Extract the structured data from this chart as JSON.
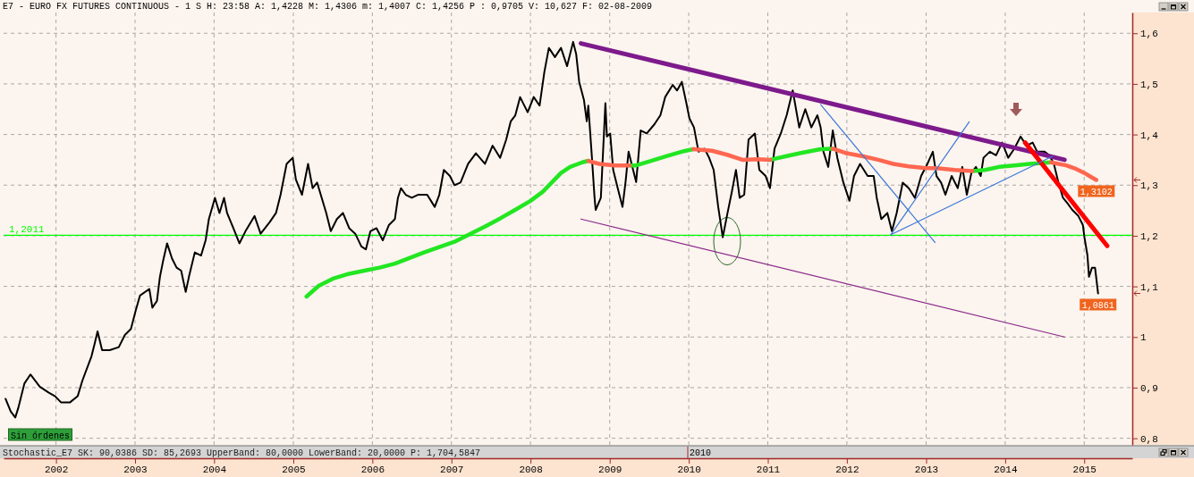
{
  "chart_data": {
    "type": "line",
    "title": "E7 - EURO FX FUTURES CONTINUOUS - 1 S H: 23:58 A: 1,4228 M: 1,4306 m: 1,4007 C: 1,4256 P : 0,9705 V: 10,627 F: 02-08-2009",
    "xlim": [
      "2001-05-04",
      "2015-08-11"
    ],
    "xticks": [
      "2002",
      "2003",
      "2004",
      "2005",
      "2006",
      "2007",
      "2008",
      "2009",
      "2010",
      "2011",
      "2012",
      "2013",
      "2014",
      "2015"
    ],
    "ylim": [
      0.787,
      1.641
    ],
    "yticks": [
      {
        "value": 0.8,
        "label": "0,8"
      },
      {
        "value": 0.9,
        "label": "0,9"
      },
      1,
      {
        "value": 1.1,
        "label": "1,1"
      },
      {
        "value": 1.2,
        "label": "1,2"
      },
      {
        "value": 1.3,
        "label": "1,3"
      },
      {
        "value": 1.4,
        "label": "1,4"
      },
      {
        "value": 1.5,
        "label": "1,5"
      },
      {
        "value": 1.6,
        "label": "1,6"
      }
    ],
    "grid": true,
    "series": [
      {
        "color": "#000000",
        "x": [
          "2001-05-13",
          "2001-06-06",
          "2001-06-27",
          "2001-07-11",
          "2001-08-08",
          "2001-09-05",
          "2001-10-18",
          "2001-11-29",
          "2001-12-28",
          "2002-01-24",
          "2002-03-07",
          "2002-04-11",
          "2002-05-03",
          "2002-06-14",
          "2002-06-28",
          "2002-07-12",
          "2002-08-02",
          "2002-09-06",
          "2002-10-18",
          "2002-11-15",
          "2002-12-13",
          "2003-01-04",
          "2003-01-24",
          "2003-03-08",
          "2003-03-22",
          "2003-04-12",
          "2003-04-26",
          "2003-05-10",
          "2003-05-29",
          "2003-06-21",
          "2003-07-12",
          "2003-08-02",
          "2003-08-23",
          "2003-09-07",
          "2003-10-04",
          "2003-11-02",
          "2003-11-23",
          "2003-12-08",
          "2004-01-05",
          "2004-01-26",
          "2004-02-16",
          "2004-03-01",
          "2004-03-30",
          "2004-04-27",
          "2004-05-25",
          "2004-07-06",
          "2004-08-03",
          "2004-09-14",
          "2004-10-13",
          "2004-11-03",
          "2004-12-01",
          "2004-12-29",
          "2005-01-13",
          "2005-02-10",
          "2005-03-10",
          "2005-03-31",
          "2005-04-21",
          "2005-05-12",
          "2005-06-02",
          "2005-06-23",
          "2005-07-21",
          "2005-08-18",
          "2005-09-16",
          "2005-10-14",
          "2005-11-11",
          "2005-12-02",
          "2005-12-23",
          "2006-01-20",
          "2006-02-18",
          "2006-03-18",
          "2006-04-15",
          "2006-04-29",
          "2006-05-13",
          "2006-06-04",
          "2006-07-02",
          "2006-07-30",
          "2006-09-11",
          "2006-10-16",
          "2006-11-06",
          "2006-11-27",
          "2006-12-25",
          "2007-01-15",
          "2007-02-12",
          "2007-03-19",
          "2007-04-24",
          "2007-06-05",
          "2007-07-10",
          "2007-08-14",
          "2007-09-11",
          "2007-10-02",
          "2007-10-23",
          "2007-11-14",
          "2007-12-19",
          "2008-01-16",
          "2008-02-12",
          "2008-03-05",
          "2008-03-26",
          "2008-04-23",
          "2008-05-21",
          "2008-06-18",
          "2008-07-16",
          "2008-07-30",
          "2008-08-13",
          "2008-09-04",
          "2008-09-17",
          "2008-09-24",
          "2008-10-09",
          "2008-10-23",
          "2008-10-28",
          "2008-11-21",
          "2008-12-12",
          "2008-12-19",
          "2009-01-03",
          "2009-01-17",
          "2009-02-07",
          "2009-03-01",
          "2009-03-15",
          "2009-03-29",
          "2009-04-19",
          "2009-05-03",
          "2009-05-24",
          "2009-06-21",
          "2009-07-26",
          "2009-08-23",
          "2009-09-14",
          "2009-10-19",
          "2009-11-08",
          "2009-11-30",
          "2009-12-21",
          "2010-01-04",
          "2010-01-25",
          "2010-02-15",
          "2010-03-15",
          "2010-04-05",
          "2010-04-26",
          "2010-05-17",
          "2010-06-07",
          "2010-06-29",
          "2010-07-19",
          "2010-08-07",
          "2010-08-24",
          "2010-09-14",
          "2010-10-04",
          "2010-11-02",
          "2010-11-23",
          "2010-12-22",
          "2011-01-11",
          "2011-02-01",
          "2011-03-02",
          "2011-03-29",
          "2011-04-26",
          "2011-05-26",
          "2011-06-23",
          "2011-07-21",
          "2011-08-18",
          "2011-09-02",
          "2011-09-15",
          "2011-10-07",
          "2011-10-28",
          "2011-11-18",
          "2011-12-16",
          "2012-01-13",
          "2012-02-03",
          "2012-03-02",
          "2012-04-06",
          "2012-05-04",
          "2012-05-18",
          "2012-06-08",
          "2012-07-06",
          "2012-07-27",
          "2012-08-18",
          "2012-09-15",
          "2012-10-13",
          "2012-11-10",
          "2012-12-09",
          "2013-01-07",
          "2013-02-01",
          "2013-02-18",
          "2013-03-11",
          "2013-03-31",
          "2013-04-29",
          "2013-05-27",
          "2013-06-17",
          "2013-07-08",
          "2013-07-29",
          "2013-08-19",
          "2013-09-10",
          "2013-09-23",
          "2013-10-22",
          "2013-11-20",
          "2013-12-18",
          "2014-01-15",
          "2014-02-12",
          "2014-03-13",
          "2014-04-10",
          "2014-05-08",
          "2014-05-29",
          "2014-07-02",
          "2014-07-24",
          "2014-08-14",
          "2014-09-04",
          "2014-09-25",
          "2014-10-16",
          "2014-11-07",
          "2014-12-05",
          "2014-12-26",
          "2015-01-02",
          "2015-01-16",
          "2015-01-23",
          "2015-02-06",
          "2015-02-20",
          "2015-03-06"
        ],
        "values": [
          0.878,
          0.853,
          0.841,
          0.86,
          0.908,
          0.926,
          0.902,
          0.89,
          0.883,
          0.871,
          0.871,
          0.883,
          0.914,
          0.962,
          0.986,
          1.011,
          0.974,
          0.974,
          0.98,
          1.004,
          1.016,
          1.052,
          1.082,
          1.095,
          1.058,
          1.071,
          1.119,
          1.149,
          1.185,
          1.155,
          1.137,
          1.131,
          1.089,
          1.119,
          1.167,
          1.161,
          1.191,
          1.233,
          1.275,
          1.245,
          1.275,
          1.245,
          1.215,
          1.185,
          1.209,
          1.239,
          1.204,
          1.227,
          1.245,
          1.281,
          1.342,
          1.354,
          1.311,
          1.281,
          1.342,
          1.294,
          1.305,
          1.275,
          1.245,
          1.209,
          1.233,
          1.245,
          1.215,
          1.204,
          1.179,
          1.173,
          1.209,
          1.215,
          1.191,
          1.221,
          1.233,
          1.275,
          1.294,
          1.281,
          1.275,
          1.281,
          1.281,
          1.257,
          1.281,
          1.33,
          1.318,
          1.3,
          1.305,
          1.342,
          1.363,
          1.342,
          1.378,
          1.354,
          1.39,
          1.426,
          1.438,
          1.474,
          1.444,
          1.474,
          1.457,
          1.523,
          1.571,
          1.553,
          1.571,
          1.535,
          1.583,
          1.559,
          1.504,
          1.468,
          1.426,
          1.457,
          1.366,
          1.275,
          1.251,
          1.275,
          1.462,
          1.396,
          1.402,
          1.33,
          1.294,
          1.257,
          1.306,
          1.366,
          1.33,
          1.306,
          1.408,
          1.402,
          1.42,
          1.438,
          1.474,
          1.498,
          1.487,
          1.504,
          1.462,
          1.432,
          1.414,
          1.366,
          1.372,
          1.354,
          1.33,
          1.257,
          1.197,
          1.245,
          1.287,
          1.33,
          1.275,
          1.281,
          1.39,
          1.402,
          1.33,
          1.318,
          1.294,
          1.372,
          1.402,
          1.438,
          1.487,
          1.414,
          1.45,
          1.414,
          1.438,
          1.414,
          1.366,
          1.336,
          1.408,
          1.354,
          1.305,
          1.269,
          1.318,
          1.342,
          1.318,
          1.318,
          1.275,
          1.233,
          1.245,
          1.209,
          1.245,
          1.305,
          1.294,
          1.275,
          1.318,
          1.342,
          1.366,
          1.318,
          1.305,
          1.281,
          1.318,
          1.294,
          1.336,
          1.281,
          1.324,
          1.336,
          1.318,
          1.354,
          1.366,
          1.359,
          1.384,
          1.354,
          1.372,
          1.396,
          1.378,
          1.384,
          1.366,
          1.366,
          1.359,
          1.342,
          1.305,
          1.275,
          1.264,
          1.251,
          1.239,
          1.221,
          1.197,
          1.161,
          1.119,
          1.137,
          1.137,
          1.0861
        ],
        "value_labels": [
          null,
          null,
          null,
          null,
          null,
          null,
          null,
          null,
          null,
          null,
          null,
          null,
          null,
          null,
          null,
          null,
          null,
          null,
          null,
          null,
          null,
          null,
          null,
          null,
          null,
          null,
          null,
          null,
          null,
          null,
          null,
          null,
          null,
          null,
          null,
          null,
          null,
          null,
          null,
          null,
          null,
          null,
          null,
          null,
          null,
          null,
          null,
          null,
          null,
          null,
          null,
          null,
          null,
          null,
          null,
          null,
          null,
          null,
          null,
          null,
          null,
          null,
          null,
          null,
          null,
          null,
          null,
          null,
          null,
          null,
          null,
          null,
          null,
          null,
          null,
          null,
          null,
          null,
          null,
          null,
          null,
          null,
          null,
          null,
          null,
          null,
          null,
          null,
          null,
          null,
          null,
          null,
          null,
          null,
          null,
          null,
          null,
          null,
          null,
          null,
          null,
          null,
          null,
          null,
          null,
          null,
          null,
          null,
          null,
          null,
          null,
          null,
          null,
          null,
          null,
          null,
          null,
          null,
          null,
          null,
          null,
          null,
          null,
          null,
          null,
          null,
          null,
          null,
          null,
          null,
          null,
          null,
          null,
          null,
          null,
          null,
          null,
          null,
          null,
          null,
          null,
          null,
          null,
          null,
          null,
          null,
          null,
          null,
          null,
          null,
          null,
          null,
          null,
          null,
          null,
          null,
          null,
          null,
          null,
          null,
          null,
          null,
          null,
          null,
          null,
          null,
          null,
          null,
          null,
          null,
          null,
          null,
          null,
          null,
          null,
          null,
          null,
          null,
          null,
          null,
          null,
          null,
          null,
          null,
          null,
          null,
          null,
          null,
          null,
          null,
          null,
          null,
          null,
          null,
          null,
          null,
          null,
          null,
          null,
          null,
          null,
          null,
          null,
          null,
          null,
          null,
          null,
          null,
          null,
          null,
          null,
          "1,0861"
        ]
      },
      {
        "color": "#22e622",
        "x": [
          "2005-03-03",
          "2005-04-28",
          "2005-07-07",
          "2005-09-16",
          "2005-11-25",
          "2006-02-03",
          "2006-04-15",
          "2006-08-27",
          "2007-01-15",
          "2007-03-26",
          "2007-06-04",
          "2007-08-13",
          "2007-10-22",
          "2008-01-01",
          "2008-02-27",
          "2008-04-08",
          "2008-05-21",
          "2008-07-02",
          "2008-08-27",
          "2008-09-24",
          "2008-12-19",
          "2009-04-03",
          "2009-05-03",
          "2009-07-11",
          "2009-09-19",
          "2009-11-29",
          "2010-01-22",
          "2010-06-01",
          "2011-01-12",
          "2011-03-24",
          "2011-05-29",
          "2011-09-02",
          "2011-10-27",
          "2012-06-01",
          "2013-08-03",
          "2013-09-30",
          "2013-12-04",
          "2014-02-12",
          "2014-04-23",
          "2014-07-31"
        ],
        "values": [
          1.08,
          1.101,
          1.116,
          1.125,
          1.131,
          1.137,
          1.145,
          1.167,
          1.188,
          1.203,
          1.218,
          1.234,
          1.251,
          1.269,
          1.287,
          1.305,
          1.324,
          1.336,
          1.345,
          1.348,
          null,
          1.339,
          1.339,
          1.348,
          1.357,
          1.366,
          1.371,
          null,
          1.35,
          1.357,
          1.363,
          1.371,
          1.372,
          null,
          1.328,
          1.33,
          1.336,
          1.339,
          1.342,
          1.345
        ]
      },
      {
        "color": "#ff6650",
        "x": [
          "2008-09-24",
          "2008-11-14",
          "2009-01-23",
          "2009-04-03",
          "2009-09-01",
          "2010-01-22",
          "2010-04-18",
          "2010-06-27",
          "2010-09-06",
          "2010-11-15",
          "2011-01-12",
          "2011-06-01",
          "2011-10-27",
          "2011-12-31",
          "2012-03-16",
          "2012-05-25",
          "2012-08-03",
          "2012-10-12",
          "2012-12-22",
          "2013-03-02",
          "2013-05-12",
          "2013-08-03",
          "2014-01-01",
          "2014-07-31",
          "2014-10-10",
          "2014-11-19",
          "2015-01-02",
          "2015-02-06",
          "2015-02-26"
        ],
        "values": [
          1.348,
          1.342,
          1.339,
          1.339,
          null,
          1.371,
          1.368,
          1.36,
          1.35,
          1.351,
          1.35,
          null,
          1.372,
          1.363,
          1.357,
          1.35,
          1.342,
          1.337,
          1.334,
          1.333,
          1.33,
          1.328,
          null,
          1.345,
          1.339,
          1.333,
          1.324,
          1.315,
          1.3102
        ],
        "value_labels": [
          null,
          null,
          null,
          null,
          null,
          null,
          null,
          null,
          null,
          null,
          null,
          null,
          null,
          null,
          null,
          null,
          null,
          null,
          null,
          null,
          null,
          null,
          null,
          null,
          null,
          null,
          null,
          null,
          "1,3102"
        ]
      },
      {
        "color": "#7d1a8c",
        "x": [
          "2008-08-21",
          "2014-10-02"
        ],
        "values": [
          1.58,
          1.35
        ]
      },
      {
        "color": "#8a2a8a",
        "x": [
          "2008-08-21",
          "2014-10-02"
        ],
        "values": [
          1.233,
          1.0
        ]
      },
      {
        "color": "#ff0000",
        "x": [
          "2014-04-03",
          "2015-04-17"
        ],
        "values": [
          1.384,
          1.18
        ]
      },
      {
        "color": "#3a78d8",
        "x": [
          "2011-09-02",
          "2013-02-11"
        ],
        "values": [
          1.459,
          1.187
        ]
      },
      {
        "color": "#3a78d8",
        "x": [
          "2012-07-22",
          "2013-07-19"
        ],
        "values": [
          1.202,
          1.425
        ]
      },
      {
        "color": "#3a78d8",
        "x": [
          "2012-07-22",
          "2014-08-07"
        ],
        "values": [
          1.202,
          1.357
        ]
      }
    ],
    "ref_lines": [
      {
        "axis": "y",
        "value": 1.2011,
        "label": "1,2011",
        "color": "#00ff00"
      }
    ],
    "annotations": [
      "Sin órdenes",
      "Stochastic_E7 SK: 90,0386 SD: 85,2693 UpperBand: 80,0000 LowerBand: 20,0000 P: 1,704,5847",
      "2010"
    ]
  }
}
